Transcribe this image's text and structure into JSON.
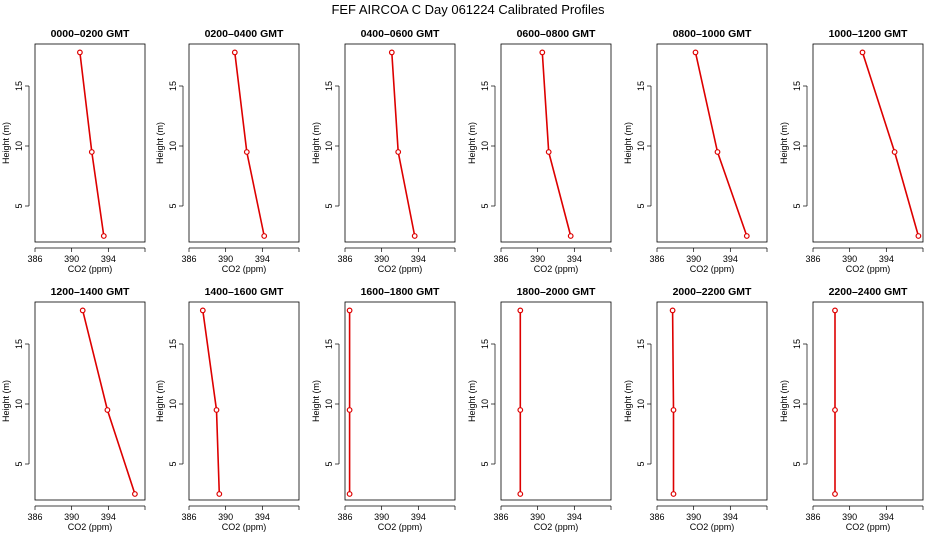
{
  "chart_data": {
    "type": "line",
    "title": "FEF AIRCOA C  Day 061224  Calibrated Profiles",
    "xlabel": "CO2 (ppm)",
    "ylabel": "Height (m)",
    "xlim": [
      386,
      398
    ],
    "ylim": [
      2,
      18.5
    ],
    "xticks": [
      "386",
      "390",
      "394"
    ],
    "yticks": [
      "5",
      "10",
      "15"
    ],
    "heights": [
      2.5,
      9.5,
      17.8
    ],
    "series_color": "#dd0000",
    "panels": [
      {
        "name": "0000–0200 GMT",
        "co2": [
          393.5,
          392.2,
          390.9
        ]
      },
      {
        "name": "0200–0400 GMT",
        "co2": [
          394.2,
          392.3,
          391.0
        ]
      },
      {
        "name": "0400–0600 GMT",
        "co2": [
          393.6,
          391.8,
          391.1
        ]
      },
      {
        "name": "0600–0800 GMT",
        "co2": [
          393.6,
          391.2,
          390.5
        ]
      },
      {
        "name": "0800–1000 GMT",
        "co2": [
          395.8,
          392.6,
          390.2
        ]
      },
      {
        "name": "1000–1200 GMT",
        "co2": [
          397.5,
          394.9,
          391.4
        ]
      },
      {
        "name": "1200–1400 GMT",
        "co2": [
          396.9,
          393.9,
          391.2
        ]
      },
      {
        "name": "1400–1600 GMT",
        "co2": [
          389.3,
          389.0,
          387.5
        ]
      },
      {
        "name": "1600–1800 GMT",
        "co2": [
          386.5,
          386.5,
          386.5
        ]
      },
      {
        "name": "1800–2000 GMT",
        "co2": [
          388.1,
          388.1,
          388.1
        ]
      },
      {
        "name": "2000–2200 GMT",
        "co2": [
          387.8,
          387.8,
          387.7
        ]
      },
      {
        "name": "2200–2400 GMT",
        "co2": [
          388.4,
          388.4,
          388.4
        ]
      }
    ]
  }
}
